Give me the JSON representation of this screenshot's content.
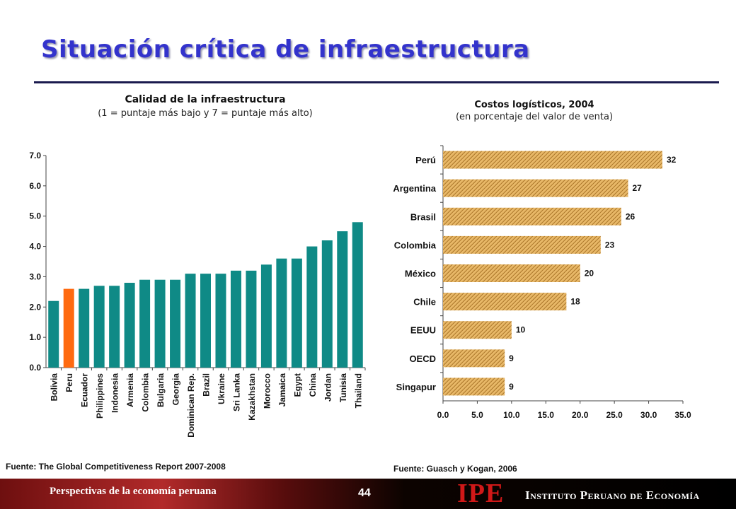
{
  "slide": {
    "title": "Situación crítica de infraestructura",
    "footer_text": "Perspectivas de la economía peruana",
    "page_number": "44",
    "logo_mark": "IPE",
    "logo_name": "Instituto Peruano de Economía"
  },
  "chart_data": [
    {
      "type": "bar",
      "orientation": "vertical",
      "title": "Calidad de la infraestructura",
      "subtitle": "(1 = puntaje más bajo y 7 = puntaje más alto)",
      "categories": [
        "Bolivia",
        "Peru",
        "Ecuador",
        "Philippines",
        "Indonesia",
        "Armenia",
        "Colombia",
        "Bulgaria",
        "Georgia",
        "Dominican Rep.",
        "Brazil",
        "Ukraine",
        "Sri Lanka",
        "Kazakhstan",
        "Morocco",
        "Jamaica",
        "Egypt",
        "China",
        "Jordan",
        "Tunisia",
        "Thailand"
      ],
      "values": [
        2.2,
        2.6,
        2.6,
        2.7,
        2.7,
        2.8,
        2.9,
        2.9,
        2.9,
        3.1,
        3.1,
        3.1,
        3.2,
        3.2,
        3.4,
        3.6,
        3.6,
        4.0,
        4.2,
        4.5,
        4.8
      ],
      "highlight": "Peru",
      "colors": {
        "bar": "#0f8a86",
        "highlight": "#ff6a10"
      },
      "yticks": [
        "0.0",
        "1.0",
        "2.0",
        "3.0",
        "4.0",
        "5.0",
        "6.0",
        "7.0"
      ],
      "ylim": [
        0,
        7
      ],
      "source": "Fuente: The Global Competitiveness Report 2007-2008"
    },
    {
      "type": "bar",
      "orientation": "horizontal",
      "title": "Costos logísticos, 2004",
      "subtitle": "(en porcentaje del valor de venta)",
      "categories": [
        "Perú",
        "Argentina",
        "Brasil",
        "Colombia",
        "México",
        "Chile",
        "EEUU",
        "OECD",
        "Singapur"
      ],
      "values": [
        32,
        27,
        26,
        23,
        20,
        18,
        10,
        9,
        9
      ],
      "colors": {
        "bar": "#e8b868",
        "hatch": "#9a6418"
      },
      "xticks": [
        "0.0",
        "5.0",
        "10.0",
        "15.0",
        "20.0",
        "25.0",
        "30.0",
        "35.0"
      ],
      "xlim": [
        0,
        35
      ],
      "source": "Fuente: Guasch y Kogan, 2006"
    }
  ]
}
